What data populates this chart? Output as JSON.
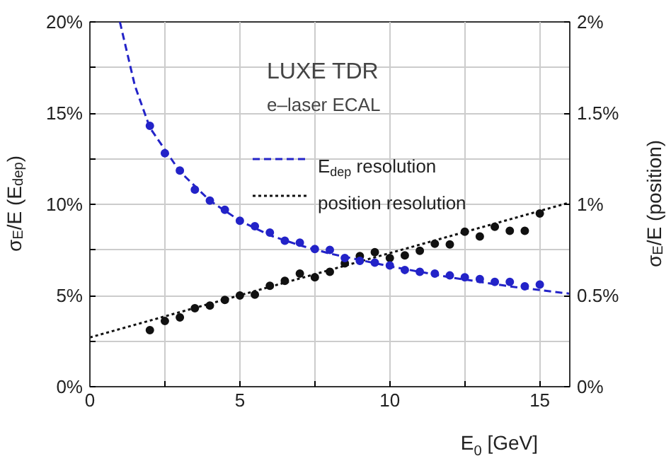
{
  "chart_data": {
    "type": "scatter",
    "xlabel": "E$_{0}$ [GeV]",
    "ylabel": "σ$_{E}$/E (E$_{dep}$)",
    "y2label": "σ$_{E}$/E (position)",
    "annotations": [
      "LUXE TDR",
      "e–laser ECAL"
    ],
    "xlim": [
      0,
      16
    ],
    "ylim": [
      0,
      20
    ],
    "y2lim": [
      0,
      2
    ],
    "xticks": [
      0,
      {
        "value": 2.5,
        "label": null
      },
      5,
      {
        "value": 7.5,
        "label": null
      },
      10,
      {
        "value": 12.5,
        "label": null
      },
      15
    ],
    "yticks": [
      {
        "value": 0,
        "label": "0%"
      },
      {
        "value": 2.5,
        "label": null
      },
      {
        "value": 5,
        "label": "5%"
      },
      {
        "value": 7.5,
        "label": null
      },
      {
        "value": 10,
        "label": "10%"
      },
      {
        "value": 12.5,
        "label": null
      },
      {
        "value": 15,
        "label": "15%"
      },
      {
        "value": 17.5,
        "label": null
      },
      {
        "value": 20,
        "label": "20%"
      }
    ],
    "y2ticks": [
      {
        "value": 0,
        "label": "0%"
      },
      {
        "value": 0.5,
        "label": "0.5%"
      },
      {
        "value": 1,
        "label": "1%"
      },
      {
        "value": 1.5,
        "label": "1.5%"
      },
      {
        "value": 2,
        "label": "2%"
      }
    ],
    "grid": true,
    "legend": "top right",
    "marker": "circle",
    "x": [
      2,
      2.5,
      3,
      3.5,
      4,
      4.5,
      5,
      5.5,
      6,
      6.5,
      7,
      7.5,
      8,
      8.5,
      9,
      9.5,
      10,
      10.5,
      11,
      11.5,
      12,
      12.5,
      13,
      13.5,
      14,
      14.5,
      15
    ],
    "series": [
      {
        "color": "#2323c8",
        "values": [
          14.3,
          12.8,
          11.85,
          10.8,
          10.2,
          9.7,
          9.1,
          8.8,
          8.45,
          8.0,
          7.9,
          7.55,
          7.5,
          7.05,
          6.9,
          6.8,
          6.65,
          6.4,
          6.3,
          6.2,
          6.1,
          6.0,
          5.9,
          5.75,
          5.75,
          5.5,
          5.6
        ]
      },
      {
        "type": "line",
        "name": "E$_{dep}$ resolution",
        "color": "#2323c8",
        "line_style": "dashed",
        "marker": "none",
        "x": [
          1,
          1.5,
          2,
          3,
          4,
          5,
          6,
          7,
          8,
          9,
          10,
          11,
          12,
          13,
          14,
          15,
          16
        ],
        "values": [
          20,
          16.5,
          14.2,
          11.8,
          10.2,
          9.1,
          8.3,
          7.75,
          7.3,
          6.95,
          6.6,
          6.3,
          6.0,
          5.75,
          5.5,
          5.3,
          5.1
        ]
      },
      {
        "axis": "y2",
        "color": "#111111",
        "values": [
          0.31,
          0.36,
          0.38,
          0.43,
          0.445,
          0.476,
          0.5,
          0.505,
          0.553,
          0.58,
          0.62,
          0.6,
          0.63,
          0.676,
          0.716,
          0.737,
          0.705,
          0.72,
          0.745,
          0.784,
          0.78,
          0.85,
          0.824,
          0.877,
          0.855,
          0.855,
          0.95
        ]
      },
      {
        "type": "line",
        "axis": "y2",
        "name": "position resolution",
        "color": "#111111",
        "line_style": "dotted",
        "marker": "none",
        "x": [
          0,
          16
        ],
        "values": [
          0.27,
          1.01
        ]
      }
    ]
  }
}
